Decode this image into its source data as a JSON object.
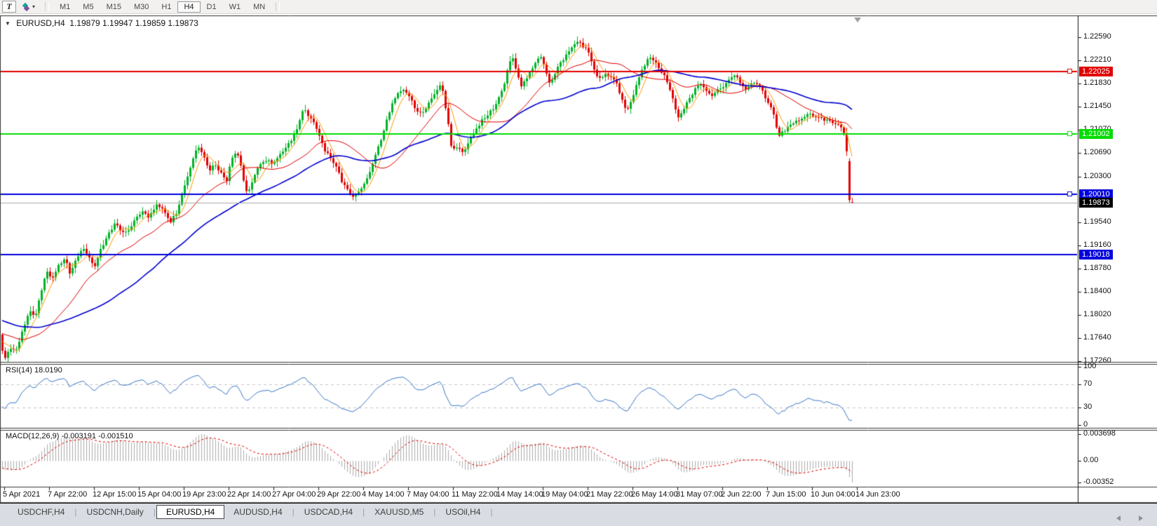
{
  "toolbar": {
    "text_tool_label": "T",
    "timeframes": [
      "M1",
      "M5",
      "M15",
      "M30",
      "H1",
      "H4",
      "D1",
      "W1",
      "MN"
    ],
    "active_timeframe": "H4"
  },
  "chart": {
    "title_symbol": "EURUSD,H4",
    "title_quote": "1.19879 1.19947 1.19859 1.19873"
  },
  "price_axis": {
    "ticks": [
      "1.22590",
      "1.22210",
      "1.21830",
      "1.21450",
      "1.21070",
      "1.20690",
      "1.20300",
      "1.19540",
      "1.19160",
      "1.18780",
      "1.18400",
      "1.18020",
      "1.17640",
      "1.17260"
    ]
  },
  "hlines": [
    {
      "label": "1.22025",
      "price": 1.22025,
      "color": "#e00000"
    },
    {
      "label": "1.21002",
      "price": 1.21002,
      "color": "#00dc00"
    },
    {
      "label": "1.20010",
      "price": 1.2001,
      "color": "#0000dc"
    },
    {
      "label": "1.19018",
      "price": 1.19018,
      "color": "#0000dc"
    }
  ],
  "bid": {
    "label": "1.19873",
    "price": 1.19873,
    "line_color": "#a8a8a8",
    "box_color": "#000000"
  },
  "rsi": {
    "label": "RSI(14) 18.0190",
    "levels": [
      "100",
      "70",
      "30",
      "0"
    ],
    "line_color": "#3c78c8"
  },
  "macd": {
    "label": "MACD(12,26,9) -0.003191 -0.001510",
    "axis": [
      "0.003698",
      "0.00",
      "-0.00352"
    ],
    "bar_color": "#ababab",
    "signal_color": "#e00000"
  },
  "time_axis": [
    "5 Apr 2021",
    "7 Apr 22:00",
    "12 Apr 15:00",
    "15 Apr 04:00",
    "19 Apr 23:00",
    "22 Apr 14:00",
    "27 Apr 04:00",
    "29 Apr 22:00",
    "4 May 14:00",
    "7 May 04:00",
    "11 May 22:00",
    "14 May 14:00",
    "19 May 04:00",
    "21 May 22:00",
    "26 May 14:00",
    "31 May 07:00",
    "2 Jun 22:00",
    "7 Jun 15:00",
    "10 Jun 04:00",
    "14 Jun 23:00"
  ],
  "tabs": [
    {
      "label": "USDCHF,H4",
      "active": false
    },
    {
      "label": "USDCNH,Daily",
      "active": false
    },
    {
      "label": "EURUSD,H4",
      "active": true
    },
    {
      "label": "AUDUSD,H4",
      "active": false
    },
    {
      "label": "USDCAD,H4",
      "active": false
    },
    {
      "label": "XAUUSD,M5",
      "active": false
    },
    {
      "label": "USOil,H4",
      "active": false
    }
  ],
  "chart_data": {
    "type": "candlestick",
    "symbol": "EURUSD",
    "timeframe": "H4",
    "current_bar": {
      "open": 1.19879,
      "high": 1.19947,
      "low": 1.19859,
      "close": 1.19873
    },
    "y_axis_range": [
      1.1726,
      1.2259
    ],
    "x_range": [
      "5 Apr 2021",
      "14 Jun 23:00"
    ],
    "indicators": {
      "rsi": {
        "period": 14,
        "current": 18.019
      },
      "macd": {
        "fast": 12,
        "slow": 26,
        "signal": 9,
        "current_main": -0.003191,
        "current_signal": -0.00151
      },
      "moving_averages": [
        {
          "name": "fast-ma",
          "color": "#ff9900"
        },
        {
          "name": "mid-ma",
          "color": "#e00000"
        },
        {
          "name": "slow-ma",
          "color": "#0000d0"
        }
      ]
    },
    "horizontal_levels": [
      1.22025,
      1.21002,
      1.2001,
      1.19018
    ],
    "candle_up_color": "#00b226",
    "candle_down_color": "#e00000",
    "price_anchors": [
      [
        0,
        1.1758
      ],
      [
        6,
        1.1729
      ],
      [
        14,
        1.1748
      ],
      [
        22,
        1.1742
      ],
      [
        32,
        1.1778
      ],
      [
        42,
        1.1812
      ],
      [
        50,
        1.18
      ],
      [
        58,
        1.1838
      ],
      [
        66,
        1.1872
      ],
      [
        74,
        1.1862
      ],
      [
        82,
        1.1882
      ],
      [
        92,
        1.1896
      ],
      [
        100,
        1.1868
      ],
      [
        108,
        1.1893
      ],
      [
        118,
        1.191
      ],
      [
        126,
        1.1898
      ],
      [
        134,
        1.1882
      ],
      [
        142,
        1.1906
      ],
      [
        152,
        1.1928
      ],
      [
        162,
        1.1952
      ],
      [
        172,
        1.1942
      ],
      [
        182,
        1.1938
      ],
      [
        192,
        1.1958
      ],
      [
        202,
        1.1972
      ],
      [
        212,
        1.1964
      ],
      [
        222,
        1.1983
      ],
      [
        232,
        1.1976
      ],
      [
        242,
        1.1955
      ],
      [
        252,
        1.1972
      ],
      [
        262,
        1.2012
      ],
      [
        272,
        1.205
      ],
      [
        282,
        1.2082
      ],
      [
        290,
        1.2062
      ],
      [
        298,
        1.204
      ],
      [
        306,
        1.2052
      ],
      [
        314,
        1.2036
      ],
      [
        322,
        1.202
      ],
      [
        330,
        1.2058
      ],
      [
        338,
        1.2072
      ],
      [
        346,
        1.203
      ],
      [
        352,
        1.2
      ],
      [
        360,
        1.2024
      ],
      [
        368,
        1.2046
      ],
      [
        378,
        1.2058
      ],
      [
        388,
        1.2052
      ],
      [
        398,
        1.2066
      ],
      [
        408,
        1.2078
      ],
      [
        416,
        1.2092
      ],
      [
        424,
        1.2112
      ],
      [
        432,
        1.2142
      ],
      [
        440,
        1.2126
      ],
      [
        448,
        1.2118
      ],
      [
        456,
        1.2096
      ],
      [
        464,
        1.207
      ],
      [
        472,
        1.2058
      ],
      [
        480,
        1.2042
      ],
      [
        488,
        1.202
      ],
      [
        496,
        1.2008
      ],
      [
        504,
        1.1996
      ],
      [
        512,
        1.2006
      ],
      [
        520,
        1.2018
      ],
      [
        528,
        1.204
      ],
      [
        536,
        1.2066
      ],
      [
        544,
        1.2096
      ],
      [
        552,
        1.2126
      ],
      [
        560,
        1.2152
      ],
      [
        568,
        1.2166
      ],
      [
        576,
        1.2172
      ],
      [
        584,
        1.2158
      ],
      [
        592,
        1.2142
      ],
      [
        600,
        1.2132
      ],
      [
        608,
        1.2146
      ],
      [
        616,
        1.2162
      ],
      [
        624,
        1.2176
      ],
      [
        630,
        1.218
      ],
      [
        638,
        1.2122
      ],
      [
        644,
        1.2072
      ],
      [
        652,
        1.2078
      ],
      [
        660,
        1.2068
      ],
      [
        668,
        1.2088
      ],
      [
        676,
        1.2102
      ],
      [
        684,
        1.2118
      ],
      [
        692,
        1.2128
      ],
      [
        700,
        1.2138
      ],
      [
        708,
        1.215
      ],
      [
        716,
        1.2172
      ],
      [
        724,
        1.2206
      ],
      [
        730,
        1.223
      ],
      [
        736,
        1.2206
      ],
      [
        742,
        1.2178
      ],
      [
        748,
        1.2188
      ],
      [
        756,
        1.2202
      ],
      [
        764,
        1.2218
      ],
      [
        772,
        1.2228
      ],
      [
        778,
        1.2206
      ],
      [
        784,
        1.218
      ],
      [
        790,
        1.2198
      ],
      [
        798,
        1.2216
      ],
      [
        806,
        1.2228
      ],
      [
        814,
        1.2242
      ],
      [
        822,
        1.2252
      ],
      [
        830,
        1.2246
      ],
      [
        838,
        1.2238
      ],
      [
        846,
        1.2206
      ],
      [
        854,
        1.219
      ],
      [
        862,
        1.2198
      ],
      [
        870,
        1.2192
      ],
      [
        878,
        1.2184
      ],
      [
        886,
        1.2158
      ],
      [
        894,
        1.2138
      ],
      [
        902,
        1.2162
      ],
      [
        910,
        1.2192
      ],
      [
        918,
        1.2212
      ],
      [
        926,
        1.2226
      ],
      [
        934,
        1.2218
      ],
      [
        942,
        1.2204
      ],
      [
        950,
        1.2188
      ],
      [
        958,
        1.216
      ],
      [
        966,
        1.2128
      ],
      [
        974,
        1.2136
      ],
      [
        982,
        1.2158
      ],
      [
        990,
        1.2172
      ],
      [
        998,
        1.2182
      ],
      [
        1006,
        1.2174
      ],
      [
        1014,
        1.2164
      ],
      [
        1022,
        1.2172
      ],
      [
        1030,
        1.2178
      ],
      [
        1038,
        1.2188
      ],
      [
        1046,
        1.2198
      ],
      [
        1054,
        1.2186
      ],
      [
        1062,
        1.2172
      ],
      [
        1070,
        1.218
      ],
      [
        1078,
        1.2186
      ],
      [
        1086,
        1.2172
      ],
      [
        1094,
        1.2154
      ],
      [
        1102,
        1.2138
      ],
      [
        1110,
        1.2098
      ],
      [
        1118,
        1.2106
      ],
      [
        1126,
        1.2112
      ],
      [
        1134,
        1.212
      ],
      [
        1142,
        1.2126
      ],
      [
        1150,
        1.213
      ],
      [
        1158,
        1.2132
      ],
      [
        1166,
        1.2128
      ],
      [
        1174,
        1.2124
      ],
      [
        1182,
        1.2122
      ],
      [
        1190,
        1.2118
      ],
      [
        1198,
        1.2112
      ],
      [
        1204,
        1.21
      ],
      [
        1208,
        1.2062
      ],
      [
        1214,
        1.1998
      ],
      [
        1218,
        1.1987
      ]
    ]
  }
}
